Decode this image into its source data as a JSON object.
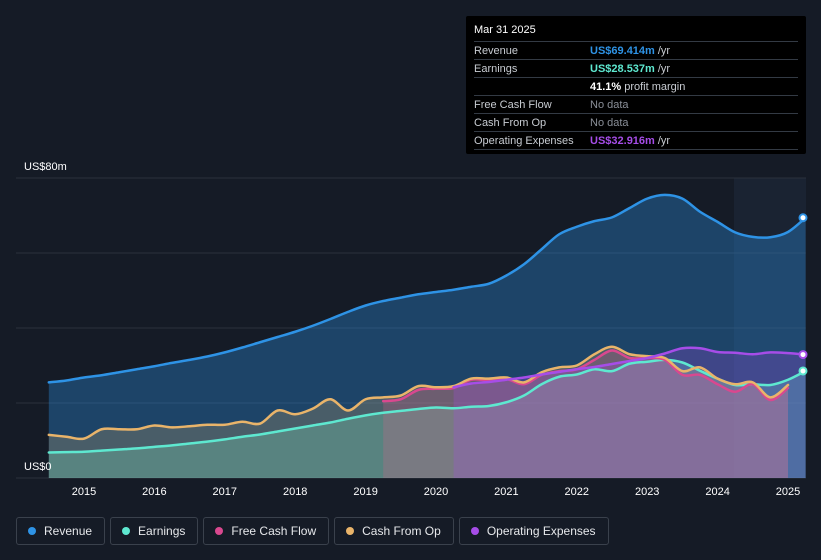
{
  "chart_data": {
    "type": "area",
    "y_axis": {
      "min": 0,
      "max": 80,
      "top_label": "US$80m",
      "bottom_label": "US$0"
    },
    "x_ticks": [
      "2015",
      "2016",
      "2017",
      "2018",
      "2019",
      "2020",
      "2021",
      "2022",
      "2023",
      "2024",
      "2025"
    ],
    "series": [
      {
        "name": "Revenue",
        "color": "#2e93e6",
        "x": [
          2014.5,
          2014.75,
          2015.0,
          2015.25,
          2015.5,
          2015.75,
          2016.0,
          2016.25,
          2016.5,
          2016.75,
          2017.0,
          2017.25,
          2017.5,
          2017.75,
          2018.0,
          2018.25,
          2018.5,
          2018.75,
          2019.0,
          2019.25,
          2019.5,
          2019.75,
          2020.0,
          2020.25,
          2020.5,
          2020.75,
          2021.0,
          2021.25,
          2021.5,
          2021.75,
          2022.0,
          2022.25,
          2022.5,
          2022.75,
          2023.0,
          2023.25,
          2023.5,
          2023.75,
          2024.0,
          2024.25,
          2024.5,
          2024.75,
          2025.0,
          2025.25
        ],
        "values": [
          25.5,
          26,
          26.8,
          27.4,
          28.2,
          29,
          29.8,
          30.7,
          31.5,
          32.4,
          33.5,
          34.8,
          36.2,
          37.6,
          39,
          40.6,
          42.4,
          44.3,
          46,
          47.2,
          48.1,
          49,
          49.6,
          50.2,
          51,
          51.8,
          54,
          57,
          61,
          65,
          67,
          68.5,
          69.5,
          72,
          74.5,
          75.5,
          74.5,
          71,
          68.3,
          65.5,
          64.3,
          64.2,
          65.6,
          69.4
        ]
      },
      {
        "name": "Earnings",
        "color": "#5ee8d0",
        "x": [
          2014.5,
          2014.75,
          2015.0,
          2015.25,
          2015.5,
          2015.75,
          2016.0,
          2016.25,
          2016.5,
          2016.75,
          2017.0,
          2017.25,
          2017.5,
          2017.75,
          2018.0,
          2018.25,
          2018.5,
          2018.75,
          2019.0,
          2019.25,
          2019.5,
          2019.75,
          2020.0,
          2020.25,
          2020.5,
          2020.75,
          2021.0,
          2021.25,
          2021.5,
          2021.75,
          2022.0,
          2022.25,
          2022.5,
          2022.75,
          2023.0,
          2023.25,
          2023.5,
          2023.75,
          2024.0,
          2024.25,
          2024.5,
          2024.75,
          2025.0,
          2025.25
        ],
        "values": [
          6.8,
          6.9,
          7.0,
          7.3,
          7.6,
          7.9,
          8.3,
          8.7,
          9.2,
          9.7,
          10.3,
          11.0,
          11.6,
          12.4,
          13.2,
          14.0,
          14.8,
          15.8,
          16.7,
          17.4,
          17.9,
          18.4,
          18.8,
          18.6,
          19.0,
          19.2,
          20.2,
          22.0,
          25.0,
          27.0,
          27.6,
          29.0,
          28.5,
          30.5,
          31.0,
          31.5,
          30.8,
          28.6,
          26.5,
          24.8,
          25.0,
          24.8,
          26.2,
          28.537
        ]
      },
      {
        "name": "Free Cash Flow",
        "color": "#d9488f",
        "x": [
          2019.25,
          2019.5,
          2019.75,
          2020.0,
          2020.25,
          2020.5,
          2020.75,
          2021.0,
          2021.25,
          2021.5,
          2021.75,
          2022.0,
          2022.25,
          2022.5,
          2022.75,
          2023.0,
          2023.25,
          2023.5,
          2023.75,
          2024.0,
          2024.25,
          2024.5,
          2024.75,
          2025.0
        ],
        "values": [
          20.5,
          21,
          23.5,
          23.8,
          24,
          26.2,
          26,
          26.4,
          25,
          27.5,
          28.5,
          29,
          31.5,
          34,
          32,
          32,
          31.5,
          27.5,
          27.5,
          25,
          23,
          25,
          20.8,
          24
        ]
      },
      {
        "name": "Cash From Op",
        "color": "#e9b46a",
        "x": [
          2014.5,
          2014.75,
          2015.0,
          2015.25,
          2015.5,
          2015.75,
          2016.0,
          2016.25,
          2016.5,
          2016.75,
          2017.0,
          2017.25,
          2017.5,
          2017.75,
          2018.0,
          2018.25,
          2018.5,
          2018.75,
          2019.0,
          2019.25,
          2019.5,
          2019.75,
          2020.0,
          2020.25,
          2020.5,
          2020.75,
          2021.0,
          2021.25,
          2021.5,
          2021.75,
          2022.0,
          2022.25,
          2022.5,
          2022.75,
          2023.0,
          2023.25,
          2023.5,
          2023.75,
          2024.0,
          2024.25,
          2024.5,
          2024.75,
          2025.0
        ],
        "values": [
          11.5,
          11,
          10.5,
          13,
          13,
          13,
          14,
          13.5,
          13.8,
          14.2,
          14.2,
          15,
          14.5,
          18,
          17,
          18.5,
          21,
          18,
          21,
          21.5,
          22,
          24.5,
          24.2,
          24.5,
          26.5,
          26.5,
          26.8,
          25.5,
          28.2,
          29.5,
          30,
          33,
          35,
          33,
          32.5,
          32,
          28.5,
          29.5,
          26.5,
          25,
          25.5,
          21.5,
          24.8
        ]
      },
      {
        "name": "Operating Expenses",
        "color": "#a64de8",
        "x": [
          2020.25,
          2020.5,
          2020.75,
          2021.0,
          2021.25,
          2021.5,
          2021.75,
          2022.0,
          2022.25,
          2022.5,
          2022.75,
          2023.0,
          2023.25,
          2023.5,
          2023.75,
          2024.0,
          2024.25,
          2024.5,
          2024.75,
          2025.0,
          2025.25
        ],
        "values": [
          24.2,
          25.2,
          25.6,
          26.2,
          26.8,
          27.6,
          28.3,
          29.0,
          29.6,
          30.4,
          31.2,
          32.0,
          33.2,
          34.6,
          34.6,
          33.6,
          33.4,
          33.0,
          33.5,
          33.3,
          32.916
        ]
      }
    ]
  },
  "tooltip": {
    "date": "Mar 31 2025",
    "rows": [
      {
        "key": "Revenue",
        "value": "US$69.414m",
        "unit": "/yr",
        "color": "#2e93e6"
      },
      {
        "key": "Earnings",
        "value": "US$28.537m",
        "unit": "/yr",
        "color": "#5ee8d0"
      },
      {
        "key": "",
        "value": "41.1%",
        "unit": "profit margin",
        "color": "#ffffff"
      },
      {
        "key": "Free Cash Flow",
        "value": "No data",
        "unit": "",
        "color": "#8a8f98"
      },
      {
        "key": "Cash From Op",
        "value": "No data",
        "unit": "",
        "color": "#8a8f98"
      },
      {
        "key": "Operating Expenses",
        "value": "US$32.916m",
        "unit": "/yr",
        "color": "#a64de8"
      }
    ]
  },
  "legend": [
    {
      "label": "Revenue",
      "color": "#2e93e6"
    },
    {
      "label": "Earnings",
      "color": "#5ee8d0"
    },
    {
      "label": "Free Cash Flow",
      "color": "#d9488f"
    },
    {
      "label": "Cash From Op",
      "color": "#e9b46a"
    },
    {
      "label": "Operating Expenses",
      "color": "#a64de8"
    }
  ]
}
